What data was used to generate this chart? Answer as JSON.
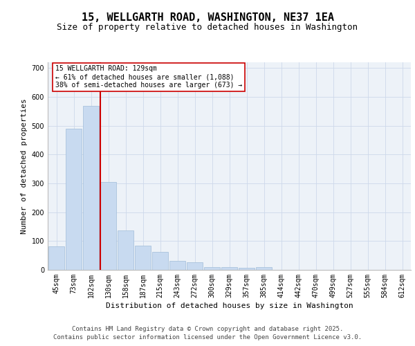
{
  "title_line1": "15, WELLGARTH ROAD, WASHINGTON, NE37 1EA",
  "title_line2": "Size of property relative to detached houses in Washington",
  "xlabel": "Distribution of detached houses by size in Washington",
  "ylabel": "Number of detached properties",
  "categories": [
    "45sqm",
    "73sqm",
    "102sqm",
    "130sqm",
    "158sqm",
    "187sqm",
    "215sqm",
    "243sqm",
    "272sqm",
    "300sqm",
    "329sqm",
    "357sqm",
    "385sqm",
    "414sqm",
    "442sqm",
    "470sqm",
    "499sqm",
    "527sqm",
    "555sqm",
    "584sqm",
    "612sqm"
  ],
  "values": [
    82,
    490,
    568,
    305,
    138,
    84,
    63,
    32,
    27,
    10,
    10,
    7,
    9,
    0,
    0,
    0,
    0,
    0,
    0,
    0,
    0
  ],
  "bar_color": "#c8daf0",
  "bar_edge_color": "#a0bcd8",
  "marker_color": "#cc0000",
  "annotation_line1": "15 WELLGARTH ROAD: 129sqm",
  "annotation_line2": "← 61% of detached houses are smaller (1,088)",
  "annotation_line3": "38% of semi-detached houses are larger (673) →",
  "ylim": [
    0,
    720
  ],
  "yticks": [
    0,
    100,
    200,
    300,
    400,
    500,
    600,
    700
  ],
  "grid_color": "#cdd8ea",
  "background_color": "#edf2f8",
  "footer_line1": "Contains HM Land Registry data © Crown copyright and database right 2025.",
  "footer_line2": "Contains public sector information licensed under the Open Government Licence v3.0.",
  "title_fontsize": 11,
  "subtitle_fontsize": 9,
  "axis_label_fontsize": 8,
  "tick_fontsize": 7,
  "annot_fontsize": 7,
  "footer_fontsize": 6.5
}
